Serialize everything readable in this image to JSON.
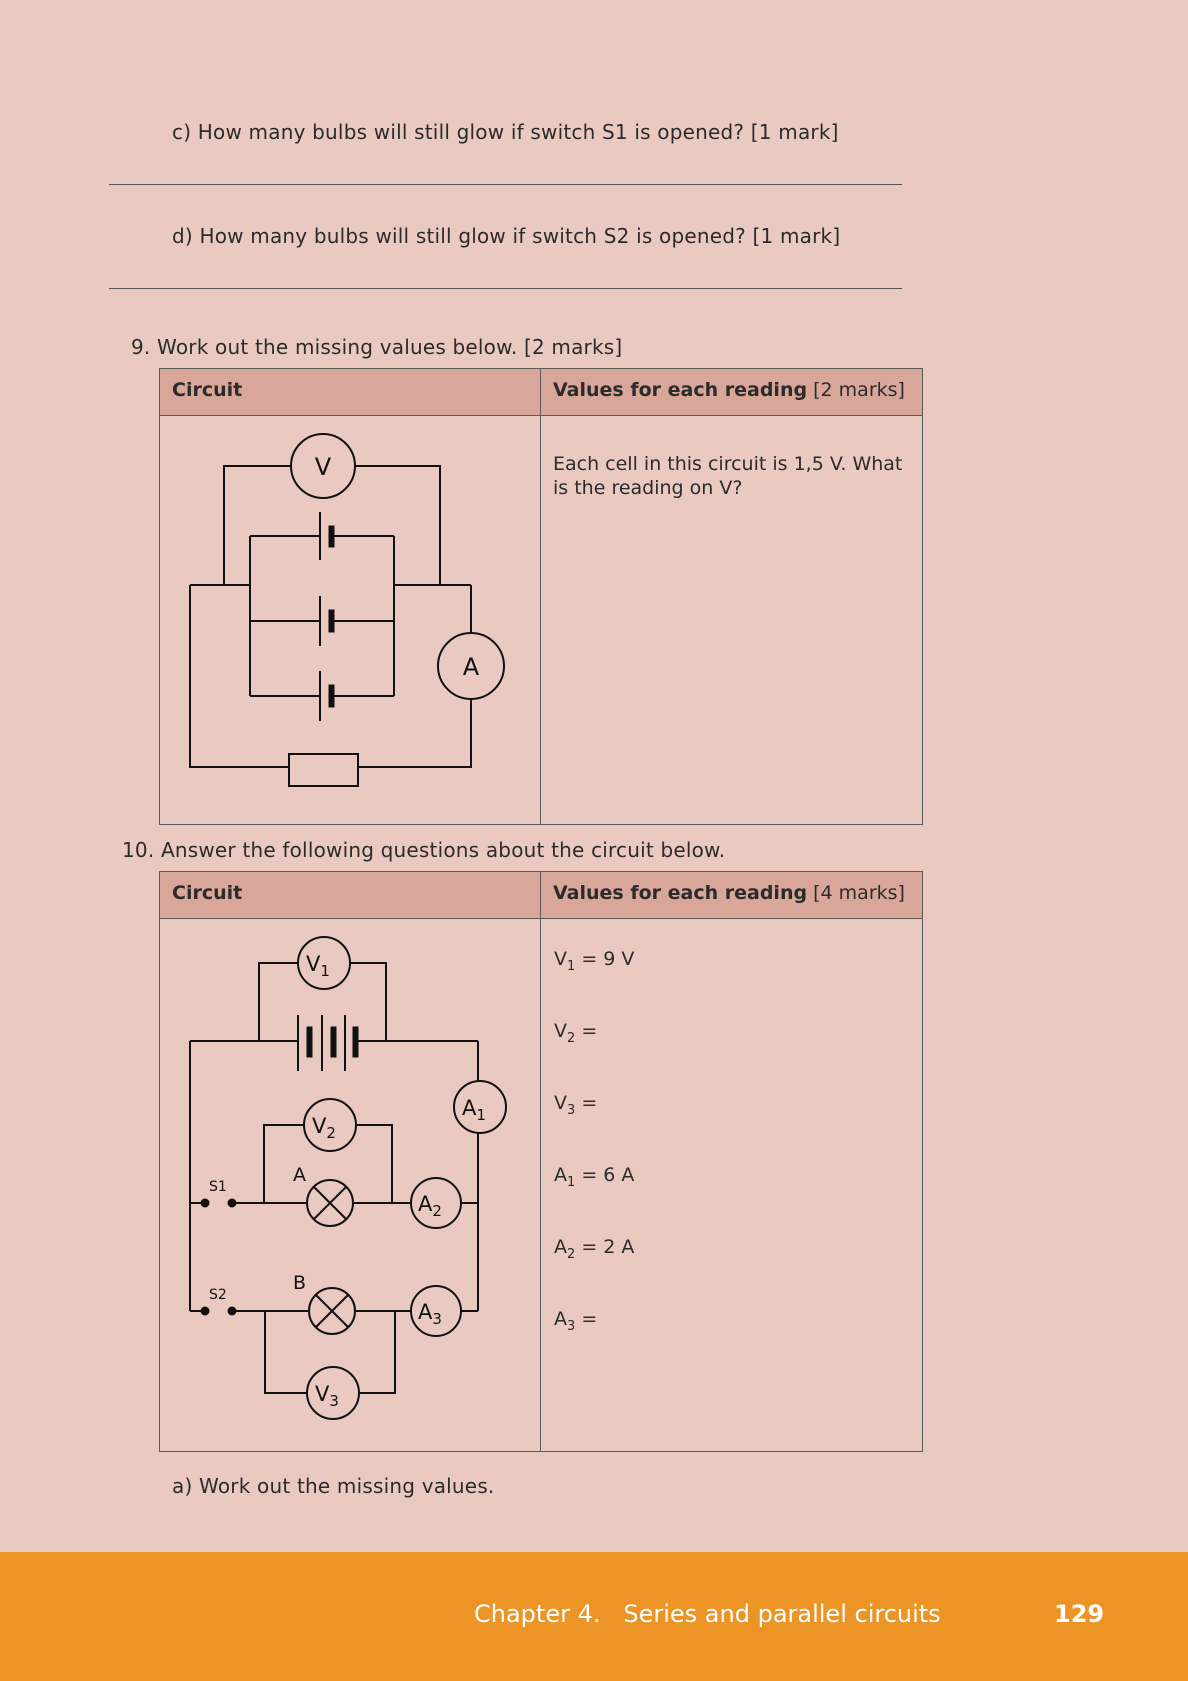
{
  "questions": {
    "q8c": {
      "label": "c)",
      "text": "How many bulbs will still glow if switch S1 is opened? [1 mark]"
    },
    "q8d": {
      "label": "d)",
      "text": "How many bulbs will still glow if switch S2 is opened? [1 mark]"
    },
    "q9": {
      "number": "9.",
      "text": "Work out the missing values below. [2 marks]"
    },
    "q10": {
      "number": "10.",
      "text": "Answer the following questions about the circuit below."
    },
    "q10a": {
      "label": "a)",
      "text": "Work out the missing values."
    }
  },
  "table9": {
    "header_circuit": "Circuit",
    "header_values_bold": "Values for each reading",
    "header_values_marks": "[2 marks]",
    "values_text": "Each cell in this circuit is 1,5 V. What is the reading on V?",
    "circuit_labels": {
      "voltmeter": "V",
      "ammeter": "A"
    }
  },
  "table10": {
    "header_circuit": "Circuit",
    "header_values_bold": "Values for each reading",
    "header_values_marks": "[4 marks]",
    "readings": [
      {
        "sym": "V",
        "sub": "1",
        "rest": " = 9 V"
      },
      {
        "sym": "V",
        "sub": "2",
        "rest": " ="
      },
      {
        "sym": "V",
        "sub": "3",
        "rest": " ="
      },
      {
        "sym": "A",
        "sub": "1",
        "rest": " = 6 A"
      },
      {
        "sym": "A",
        "sub": "2",
        "rest": " = 2 A"
      },
      {
        "sym": "A",
        "sub": "3",
        "rest": " ="
      }
    ],
    "circuit_labels": {
      "v1": "V",
      "v1_sub": "1",
      "v2": "V",
      "v2_sub": "2",
      "v3": "V",
      "v3_sub": "3",
      "a1": "A",
      "a1_sub": "1",
      "a2": "A",
      "a2_sub": "2",
      "a3": "A",
      "a3_sub": "3",
      "switch1": "S1",
      "switch2": "S2",
      "bulb_a": "A",
      "bulb_b": "B"
    }
  },
  "footer": {
    "chapter": "Chapter 4.   Series and parallel circuits",
    "page_number": "129",
    "color": "#ec9425"
  }
}
